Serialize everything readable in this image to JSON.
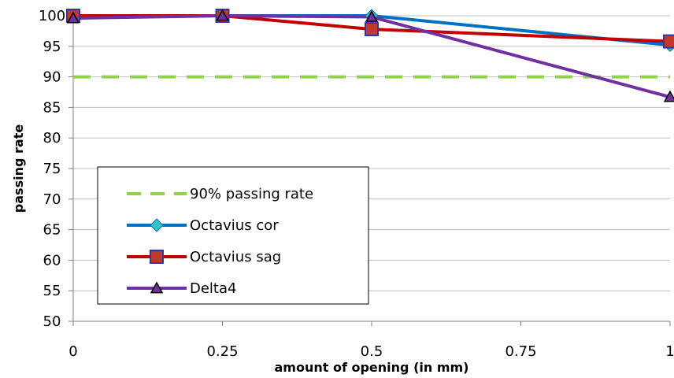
{
  "chart_data": {
    "type": "line",
    "title": "",
    "xlabel": "amount of opening (in mm)",
    "ylabel": "passing rate",
    "x": [
      0,
      0.25,
      0.5,
      1
    ],
    "x_ticks": [
      "0",
      "0.25",
      "0.5",
      "0.75",
      "1"
    ],
    "x_tick_values": [
      0,
      0.25,
      0.5,
      0.75,
      1
    ],
    "xlim": [
      0,
      1
    ],
    "ylim": [
      50,
      100
    ],
    "y_ticks": [
      "50",
      "55",
      "60",
      "65",
      "70",
      "75",
      "80",
      "85",
      "90",
      "95",
      "100"
    ],
    "y_tick_values": [
      50,
      55,
      60,
      65,
      70,
      75,
      80,
      85,
      90,
      95,
      100
    ],
    "grid": "horizontal",
    "legend_position": "bottom-left",
    "series": [
      {
        "name": "90% passing rate",
        "values": [
          90,
          90,
          90,
          90
        ],
        "color": "#92d050",
        "style": "dashed",
        "marker": "none"
      },
      {
        "name": "Octavius cor",
        "values": [
          100,
          100,
          100,
          95.2
        ],
        "color": "#0070c0",
        "style": "solid",
        "marker": "diamond",
        "marker_color": "#2ec4c4"
      },
      {
        "name": "Octavius sag",
        "values": [
          100,
          100,
          97.8,
          95.8
        ],
        "color": "#c00000",
        "style": "solid",
        "marker": "square",
        "marker_color": "#c0392b"
      },
      {
        "name": "Delta4",
        "values": [
          99.6,
          100,
          99.8,
          86.7
        ],
        "color": "#7030a0",
        "style": "solid",
        "marker": "triangle",
        "marker_color": "#7030a0"
      }
    ]
  }
}
